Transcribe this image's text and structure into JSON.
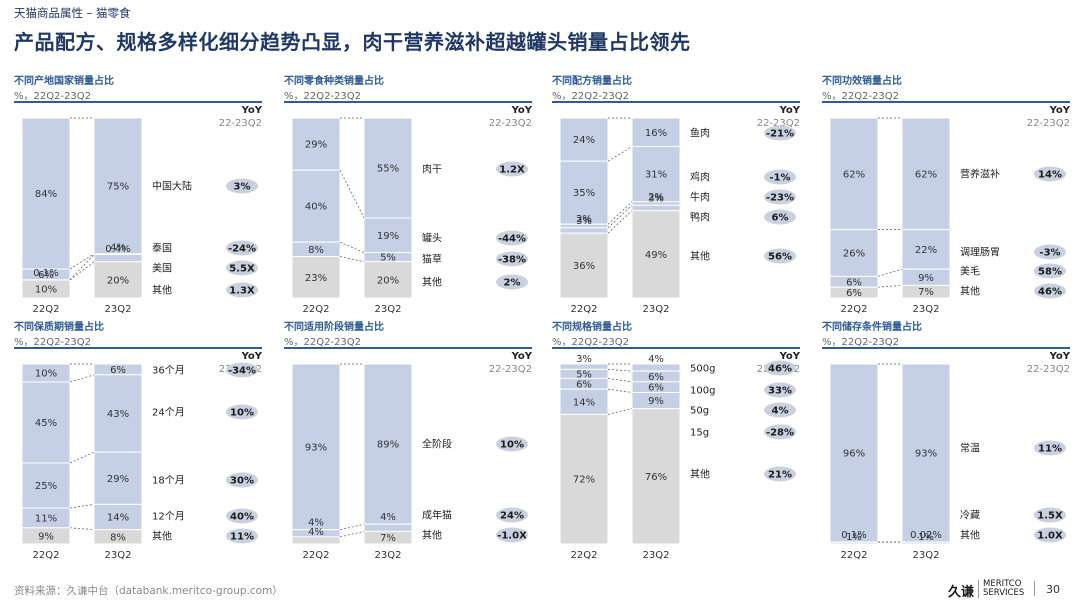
{
  "header": {
    "breadcrumb": "天猫商品属性 – 猫零食",
    "title": "产品配方、规格多样化细分趋势凸显，肉干营养滋补超越罐头销量占比领先"
  },
  "common": {
    "yoy_title": "YoY",
    "yoy_period": "22-23Q2",
    "period_22": "22Q2",
    "period_23": "23Q2"
  },
  "colors": {
    "blue": "#c5cfe5",
    "grey": "#d9d9d9",
    "pill": "#c9d1e0",
    "accent": "#1f3864"
  },
  "chart_data": [
    {
      "type": "bar",
      "stacked": true,
      "title": "不同产地国家销量占比",
      "subtitle": "%，22Q2-23Q2",
      "categories": [
        "22Q2",
        "23Q2"
      ],
      "series": [
        {
          "name": "中国大陆",
          "values": [
            84,
            75
          ],
          "labels": [
            "84%",
            "75%"
          ],
          "yoy": "3%"
        },
        {
          "name": "泰国",
          "values": [
            6,
            0.4
          ],
          "labels": [
            "6%",
            "0.4%"
          ],
          "yoy": "-24%"
        },
        {
          "name": "美国",
          "values": [
            0.1,
            4
          ],
          "labels": [
            "0.1%",
            "4%"
          ],
          "yoy": "5.5X"
        },
        {
          "name": "其他",
          "values": [
            10,
            20
          ],
          "labels": [
            "10%",
            "20%"
          ],
          "yoy": "1.3X"
        }
      ]
    },
    {
      "type": "bar",
      "stacked": true,
      "title": "不同零食种类销量占比",
      "subtitle": "%，22Q2-23Q2",
      "categories": [
        "22Q2",
        "23Q2"
      ],
      "series": [
        {
          "name": "肉干",
          "values": [
            29,
            55
          ],
          "labels": [
            "29%",
            "55%"
          ],
          "yoy": "1.2X"
        },
        {
          "name": "罐头",
          "values": [
            40,
            19
          ],
          "labels": [
            "40%",
            "19%"
          ],
          "yoy": "-44%"
        },
        {
          "name": "猫草",
          "values": [
            8,
            5
          ],
          "labels": [
            "8%",
            "5%"
          ],
          "yoy": "-38%"
        },
        {
          "name": "其他",
          "values": [
            23,
            20
          ],
          "labels": [
            "23%",
            "20%"
          ],
          "yoy": "2%"
        }
      ]
    },
    {
      "type": "bar",
      "stacked": true,
      "title": "不同配方销量占比",
      "subtitle": "%，22Q2-23Q2",
      "categories": [
        "22Q2",
        "23Q2"
      ],
      "series": [
        {
          "name": "鱼肉",
          "values": [
            24,
            16
          ],
          "labels": [
            "24%",
            "16%"
          ],
          "yoy": "-21%"
        },
        {
          "name": "鸡肉",
          "values": [
            35,
            31
          ],
          "labels": [
            "35%",
            "31%"
          ],
          "yoy": "-1%"
        },
        {
          "name": "牛肉",
          "values": [
            2,
            2
          ],
          "labels": [
            "2%",
            "2%"
          ],
          "yoy": "-23%"
        },
        {
          "name": "鸭肉",
          "values": [
            3,
            3
          ],
          "labels": [
            "3%",
            "3%"
          ],
          "yoy": "6%"
        },
        {
          "name": "其他",
          "values": [
            36,
            49
          ],
          "labels": [
            "36%",
            "49%"
          ],
          "yoy": "56%"
        }
      ]
    },
    {
      "type": "bar",
      "stacked": true,
      "title": "不同功效销量占比",
      "subtitle": "%，22Q2-23Q2",
      "categories": [
        "22Q2",
        "23Q2"
      ],
      "series": [
        {
          "name": "营养滋补",
          "values": [
            62,
            62
          ],
          "labels": [
            "62%",
            "62%"
          ],
          "yoy": "14%"
        },
        {
          "name": "调理肠胃",
          "values": [
            26,
            22
          ],
          "labels": [
            "26%",
            "22%"
          ],
          "yoy": "-3%"
        },
        {
          "name": "美毛",
          "values": [
            6,
            9
          ],
          "labels": [
            "6%",
            "9%"
          ],
          "yoy": "58%"
        },
        {
          "name": "其他",
          "values": [
            6,
            7
          ],
          "labels": [
            "6%",
            "7%"
          ],
          "yoy": "46%"
        }
      ]
    },
    {
      "type": "bar",
      "stacked": true,
      "title": "不同保质期销量占比",
      "subtitle": "%，22Q2-23Q2",
      "categories": [
        "22Q2",
        "23Q2"
      ],
      "series": [
        {
          "name": "36个月",
          "values": [
            10,
            6
          ],
          "labels": [
            "10%",
            "6%"
          ],
          "yoy": "-34%"
        },
        {
          "name": "24个月",
          "values": [
            45,
            43
          ],
          "labels": [
            "45%",
            "43%"
          ],
          "yoy": "10%"
        },
        {
          "name": "18个月",
          "values": [
            25,
            29
          ],
          "labels": [
            "25%",
            "29%"
          ],
          "yoy": "30%"
        },
        {
          "name": "12个月",
          "values": [
            11,
            14
          ],
          "labels": [
            "11%",
            "14%"
          ],
          "yoy": "40%"
        },
        {
          "name": "其他",
          "values": [
            9,
            8
          ],
          "labels": [
            "9%",
            "8%"
          ],
          "yoy": "11%"
        }
      ]
    },
    {
      "type": "bar",
      "stacked": true,
      "title": "不同适用阶段销量占比",
      "subtitle": "%，22Q2-23Q2",
      "categories": [
        "22Q2",
        "23Q2"
      ],
      "series": [
        {
          "name": "全阶段",
          "values": [
            93,
            89
          ],
          "labels": [
            "93%",
            "89%"
          ],
          "yoy": "10%"
        },
        {
          "name": "成年猫",
          "values": [
            4,
            4
          ],
          "labels": [
            "4%",
            "4%"
          ],
          "yoy": "24%"
        },
        {
          "name": "其他",
          "values": [
            4,
            7
          ],
          "labels": [
            "4%",
            "7%"
          ],
          "yoy": "-1.0X"
        }
      ]
    },
    {
      "type": "bar",
      "stacked": true,
      "title": "不同规格销量占比",
      "subtitle": "%，22Q2-23Q2",
      "categories": [
        "22Q2",
        "23Q2"
      ],
      "series": [
        {
          "name": "500g",
          "values": [
            3,
            4
          ],
          "labels": [
            "3%",
            "4%"
          ],
          "yoy": "46%"
        },
        {
          "name": "100g",
          "values": [
            5,
            6
          ],
          "labels": [
            "5%",
            "6%"
          ],
          "yoy": "33%"
        },
        {
          "name": "50g",
          "values": [
            6,
            6
          ],
          "labels": [
            "6%",
            "6%"
          ],
          "yoy": "4%"
        },
        {
          "name": "15g",
          "values": [
            14,
            9
          ],
          "labels": [
            "14%",
            "9%"
          ],
          "yoy": "-28%"
        },
        {
          "name": "其他",
          "values": [
            72,
            76
          ],
          "labels": [
            "72%",
            "76%"
          ],
          "yoy": "21%"
        }
      ]
    },
    {
      "type": "bar",
      "stacked": true,
      "title": "不同储存条件销量占比",
      "subtitle": "%，22Q2-23Q2",
      "categories": [
        "22Q2",
        "23Q2"
      ],
      "series": [
        {
          "name": "常温",
          "values": [
            96,
            93
          ],
          "labels": [
            "96%",
            "93%"
          ],
          "yoy": "11%"
        },
        {
          "name": "冷藏",
          "values": [
            0.1,
            0.02
          ],
          "labels": [
            "0.1%",
            "0.02%"
          ],
          "yoy": "1.5X"
        },
        {
          "name": "其他",
          "values": [
            1,
            1
          ],
          "labels": [
            "1%",
            "1%"
          ],
          "yoy": "1.0X"
        }
      ]
    }
  ],
  "footer": {
    "source": "资料来源：久谦中台（databank.meritco-group.com）",
    "logo_cn": "久谦",
    "logo_en1": "MERITCO",
    "logo_en2": "SERVICES",
    "page_number": "30"
  }
}
